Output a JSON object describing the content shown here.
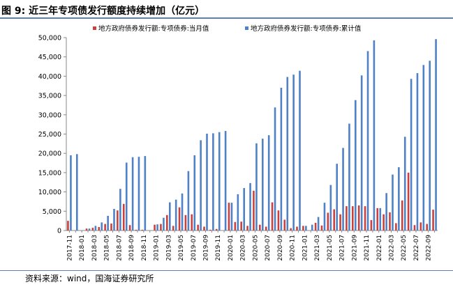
{
  "figure": {
    "title": "图 9:  近三年专项债发行额度持续增加（亿元）",
    "source": "资料来源：wind，国海证券研究所"
  },
  "colors": {
    "monthly": "#c8413e",
    "cumulative": "#4f81c7",
    "axis": "#888888",
    "rule": "#5b7fb0"
  },
  "chart_data": {
    "type": "bar",
    "legend_position": "top",
    "grid": false,
    "ylim": [
      0,
      50000
    ],
    "yticks": [
      "0",
      "5,000",
      "10,000",
      "15,000",
      "20,000",
      "25,000",
      "30,000",
      "35,000",
      "40,000",
      "45,000",
      "50,000"
    ],
    "xticks": [
      "2017-11",
      "2018-01",
      "2018-03",
      "2018-05",
      "2018-07",
      "2018-09",
      "2018-11",
      "2019-01",
      "2019-03",
      "2019-05",
      "2019-07",
      "2019-09",
      "2019-11",
      "2020-01",
      "2020-03",
      "2020-05",
      "2020-07",
      "2020-09",
      "2020-11",
      "2021-01",
      "2021-03",
      "2021-05",
      "2021-07",
      "2021-09",
      "2021-11",
      "2022-01",
      "2022-03",
      "2022-05",
      "2022-07",
      "2022-09"
    ],
    "categories": [
      "2017-11",
      "2017-12",
      "2018-01",
      "2018-02",
      "2018-03",
      "2018-04",
      "2018-05",
      "2018-06",
      "2018-07",
      "2018-08",
      "2018-09",
      "2018-10",
      "2018-11",
      "2018-12",
      "2019-01",
      "2019-02",
      "2019-03",
      "2019-04",
      "2019-05",
      "2019-06",
      "2019-07",
      "2019-08",
      "2019-09",
      "2019-10",
      "2019-11",
      "2019-12",
      "2020-01",
      "2020-02",
      "2020-03",
      "2020-04",
      "2020-05",
      "2020-06",
      "2020-07",
      "2020-08",
      "2020-09",
      "2020-10",
      "2020-11",
      "2020-12",
      "2021-01",
      "2021-02",
      "2021-03",
      "2021-04",
      "2021-05",
      "2021-06",
      "2021-07",
      "2021-08",
      "2021-09",
      "2021-10",
      "2021-11",
      "2021-12",
      "2022-01",
      "2022-02",
      "2022-03",
      "2022-04",
      "2022-05",
      "2022-06",
      "2022-07",
      "2022-08",
      "2022-09",
      "2022-10"
    ],
    "series": [
      {
        "name": "地方政府债券发行额:专项债券:当月值",
        "values": [
          2500,
          0,
          0,
          500,
          700,
          900,
          1700,
          1800,
          5200,
          6900,
          1400,
          200,
          200,
          0,
          1500,
          1700,
          4000,
          1200,
          6000,
          4000,
          4200,
          1500,
          1000,
          200,
          400,
          0,
          7200,
          2200,
          2300,
          1200,
          10300,
          1500,
          1000,
          7300,
          5200,
          2800,
          600,
          1000,
          1200,
          0,
          2000,
          1300,
          4600,
          5500,
          4200,
          6300,
          6300,
          6500,
          6300,
          2700,
          5800,
          4200,
          4700,
          1900,
          7800,
          15000,
          1400,
          2100,
          1700,
          5400
        ]
      },
      {
        "name": "地方政府债券发行额:专项债券:累计值",
        "values": [
          19500,
          19800,
          0,
          500,
          1200,
          2100,
          3800,
          5600,
          10800,
          17600,
          19000,
          19100,
          19300,
          0,
          1600,
          3300,
          7300,
          8000,
          9600,
          15400,
          19500,
          23400,
          25100,
          25200,
          25500,
          25800,
          7200,
          9400,
          11000,
          12300,
          22600,
          23800,
          24700,
          31900,
          37000,
          39800,
          40400,
          41400,
          1200,
          1500,
          3500,
          7200,
          11800,
          17300,
          21400,
          27700,
          33800,
          40200,
          46500,
          49300,
          5800,
          9700,
          14500,
          16400,
          24300,
          39300,
          40800,
          42900,
          44000,
          49600
        ]
      }
    ]
  }
}
